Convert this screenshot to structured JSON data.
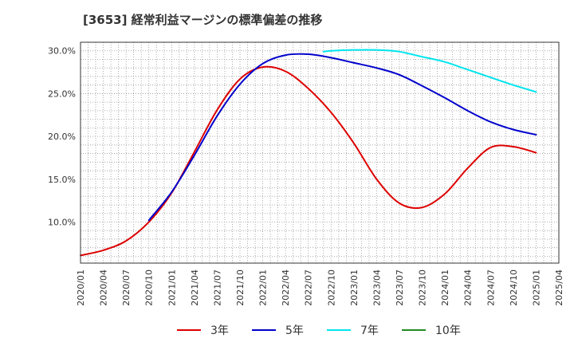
{
  "chart_data": {
    "type": "line",
    "title": "[3653]  経常利益マージンの標準偏差の推移",
    "xlabel": "",
    "ylabel": "",
    "x_tick_labels": [
      "2020/01",
      "2020/04",
      "2020/07",
      "2020/10",
      "2021/01",
      "2021/04",
      "2021/07",
      "2021/10",
      "2022/01",
      "2022/04",
      "2022/07",
      "2022/10",
      "2023/01",
      "2023/04",
      "2023/07",
      "2023/10",
      "2024/01",
      "2024/04",
      "2024/07",
      "2024/10",
      "2025/01",
      "2025/04"
    ],
    "y_tick_labels": [
      "10.0%",
      "15.0%",
      "20.0%",
      "25.0%",
      "30.0%"
    ],
    "y_ticks": [
      10,
      15,
      20,
      25,
      30
    ],
    "ylim": [
      5.2,
      31.0
    ],
    "grid": true,
    "legend_position": "bottom",
    "series": [
      {
        "name": "3年",
        "color": "#dd0000",
        "x": [
          "2020/01",
          "2020/04",
          "2020/07",
          "2020/10",
          "2021/01",
          "2021/04",
          "2021/07",
          "2021/10",
          "2022/01",
          "2022/04",
          "2022/07",
          "2022/10",
          "2023/01",
          "2023/04",
          "2023/07",
          "2023/10",
          "2024/01",
          "2024/04",
          "2024/07",
          "2024/10",
          "2025/01"
        ],
        "values": [
          6.1,
          6.7,
          7.8,
          10.0,
          13.4,
          18.2,
          23.1,
          26.7,
          28.1,
          27.6,
          25.6,
          22.8,
          19.2,
          15.0,
          12.2,
          11.7,
          13.3,
          16.3,
          18.7,
          18.8,
          18.1
        ]
      },
      {
        "name": "5年",
        "color": "#0000cc",
        "x": [
          "2020/10",
          "2021/01",
          "2021/04",
          "2021/07",
          "2021/10",
          "2022/01",
          "2022/04",
          "2022/07",
          "2022/10",
          "2023/01",
          "2023/04",
          "2023/07",
          "2023/10",
          "2024/01",
          "2024/04",
          "2024/07",
          "2024/10",
          "2025/01"
        ],
        "values": [
          10.2,
          13.5,
          17.8,
          22.4,
          26.1,
          28.5,
          29.5,
          29.6,
          29.2,
          28.6,
          28.0,
          27.2,
          25.9,
          24.5,
          23.0,
          21.7,
          20.8,
          20.2
        ]
      },
      {
        "name": "7年",
        "color": "#00e5ee",
        "x": [
          "2022/09",
          "2022/10",
          "2023/01",
          "2023/04",
          "2023/07",
          "2023/10",
          "2024/01",
          "2024/04",
          "2024/07",
          "2024/10",
          "2025/01"
        ],
        "values": [
          29.9,
          30.0,
          30.1,
          30.1,
          29.9,
          29.3,
          28.7,
          27.8,
          26.9,
          26.0,
          25.2
        ]
      },
      {
        "name": "10年",
        "color": "#228b22",
        "x": [],
        "values": []
      }
    ]
  }
}
